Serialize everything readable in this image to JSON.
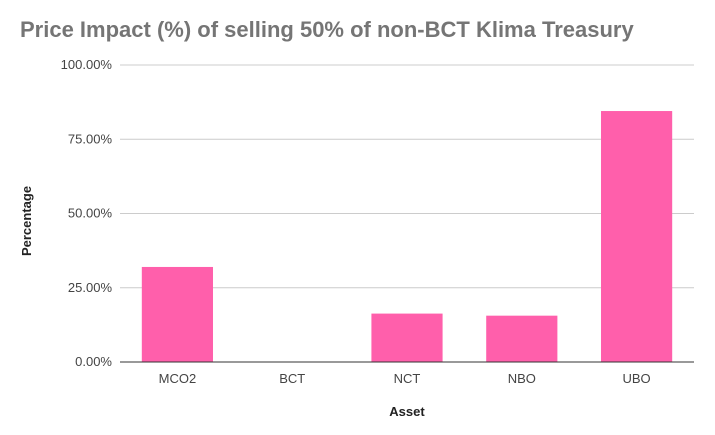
{
  "chart_data": {
    "type": "bar",
    "title": "Price Impact (%) of selling 50% of non-BCT Klima Treasury",
    "xlabel": "Asset",
    "ylabel": "Percentage",
    "categories": [
      "MCO2",
      "BCT",
      "NCT",
      "NBO",
      "UBO"
    ],
    "values": [
      32.0,
      0.0,
      16.3,
      15.6,
      84.5
    ],
    "ylim": [
      0,
      100
    ],
    "yticks": [
      0,
      25,
      50,
      75,
      100
    ],
    "ytick_labels": [
      "0.00%",
      "25.00%",
      "50.00%",
      "75.00%",
      "100.00%"
    ],
    "bar_color": "#ff5fab",
    "grid": true,
    "legend": "none"
  }
}
